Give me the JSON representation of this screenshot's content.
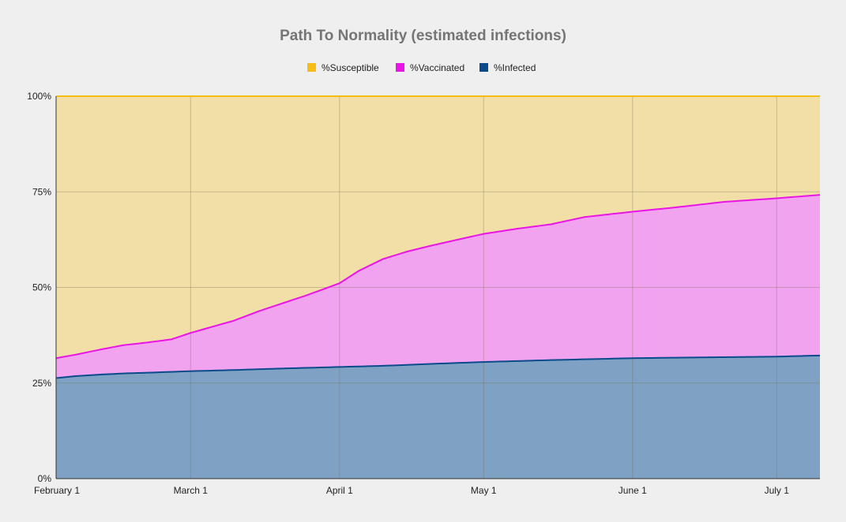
{
  "chart_data": {
    "type": "area",
    "stacked": true,
    "title": "Path To Normality (estimated infections)",
    "xlabel": "",
    "ylabel": "",
    "x_range": [
      "2021-02-01",
      "2021-07-10"
    ],
    "ylim": [
      0,
      100
    ],
    "y_ticks": [
      {
        "value": 0,
        "label": "0%"
      },
      {
        "value": 25,
        "label": "25%"
      },
      {
        "value": 50,
        "label": "50%"
      },
      {
        "value": 75,
        "label": "75%"
      },
      {
        "value": 100,
        "label": "100%"
      }
    ],
    "x_ticks": [
      {
        "date": "2021-02-01",
        "label": "February 1"
      },
      {
        "date": "2021-03-01",
        "label": "March 1"
      },
      {
        "date": "2021-04-01",
        "label": "April 1"
      },
      {
        "date": "2021-05-01",
        "label": "May 1"
      },
      {
        "date": "2021-06-01",
        "label": "June 1"
      },
      {
        "date": "2021-07-01",
        "label": "July 1"
      }
    ],
    "grid": true,
    "legend_position": "top",
    "series": [
      {
        "name": "%Infected",
        "color": "#0b4a8b",
        "fill": "#7fa2c4",
        "x": [
          "2021-02-01",
          "2021-02-05",
          "2021-02-10",
          "2021-02-15",
          "2021-02-20",
          "2021-03-01",
          "2021-03-10",
          "2021-03-20",
          "2021-04-01",
          "2021-04-10",
          "2021-04-20",
          "2021-05-01",
          "2021-05-15",
          "2021-06-01",
          "2021-06-15",
          "2021-07-01",
          "2021-07-10"
        ],
        "values": [
          26.3,
          26.8,
          27.2,
          27.5,
          27.7,
          28.1,
          28.4,
          28.8,
          29.2,
          29.5,
          30.0,
          30.5,
          31.0,
          31.5,
          31.7,
          31.9,
          32.2
        ]
      },
      {
        "name": "%Vaccinated",
        "color": "#ea14e6",
        "fill": "#f2a3f0",
        "x": [
          "2021-02-01",
          "2021-02-05",
          "2021-02-10",
          "2021-02-15",
          "2021-02-20",
          "2021-02-25",
          "2021-03-01",
          "2021-03-05",
          "2021-03-10",
          "2021-03-15",
          "2021-03-20",
          "2021-03-25",
          "2021-04-01",
          "2021-04-05",
          "2021-04-10",
          "2021-04-15",
          "2021-04-20",
          "2021-04-25",
          "2021-05-01",
          "2021-05-08",
          "2021-05-15",
          "2021-05-22",
          "2021-06-01",
          "2021-06-10",
          "2021-06-20",
          "2021-07-01",
          "2021-07-10"
        ],
        "values": [
          5.2,
          5.6,
          6.5,
          7.4,
          7.9,
          8.5,
          10.0,
          11.3,
          12.9,
          15.1,
          17.0,
          18.9,
          21.9,
          25.0,
          27.9,
          29.6,
          30.9,
          32.1,
          33.5,
          34.6,
          35.5,
          37.2,
          38.3,
          39.3,
          40.6,
          41.4,
          42.0
        ]
      },
      {
        "name": "%Susceptible",
        "color": "#f6bd16",
        "fill": "#f2dfa8",
        "remainder_to": 100
      }
    ],
    "legend_order": [
      "%Susceptible",
      "%Vaccinated",
      "%Infected"
    ]
  }
}
